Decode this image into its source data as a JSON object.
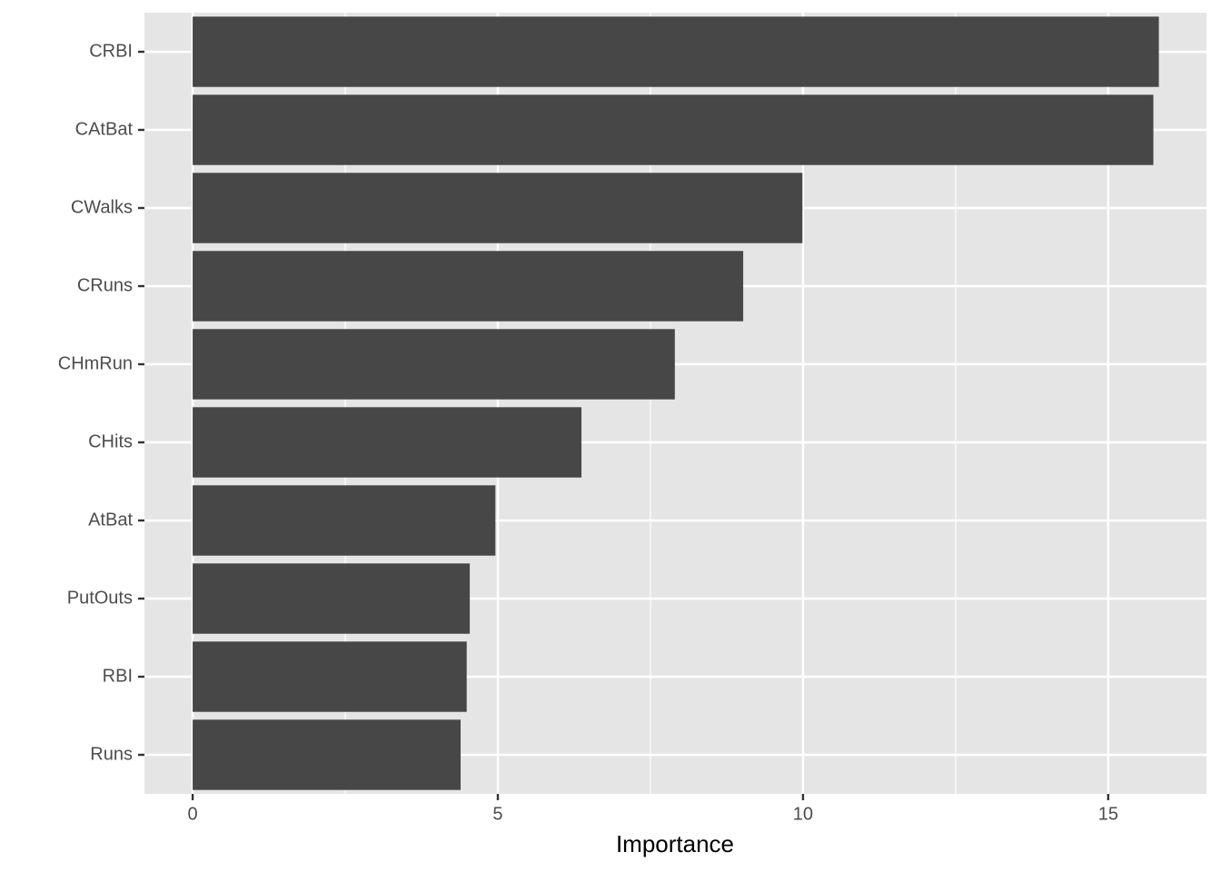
{
  "chart_data": {
    "type": "bar",
    "orientation": "horizontal",
    "x_label": "Importance",
    "categories": [
      "CRBI",
      "CAtBat",
      "CWalks",
      "CRuns",
      "CHmRun",
      "CHits",
      "AtBat",
      "PutOuts",
      "RBI",
      "Runs"
    ],
    "values": [
      15.83,
      15.74,
      9.99,
      9.02,
      7.9,
      6.37,
      4.96,
      4.54,
      4.49,
      4.39
    ],
    "color": "#474747",
    "xlim": [
      -0.79,
      16.61
    ],
    "xticks": [
      0,
      5,
      10,
      15
    ],
    "x_minor_grid": [
      2.5,
      7.5,
      12.5
    ],
    "grid": true,
    "panel_color": "#e5e5e5"
  }
}
